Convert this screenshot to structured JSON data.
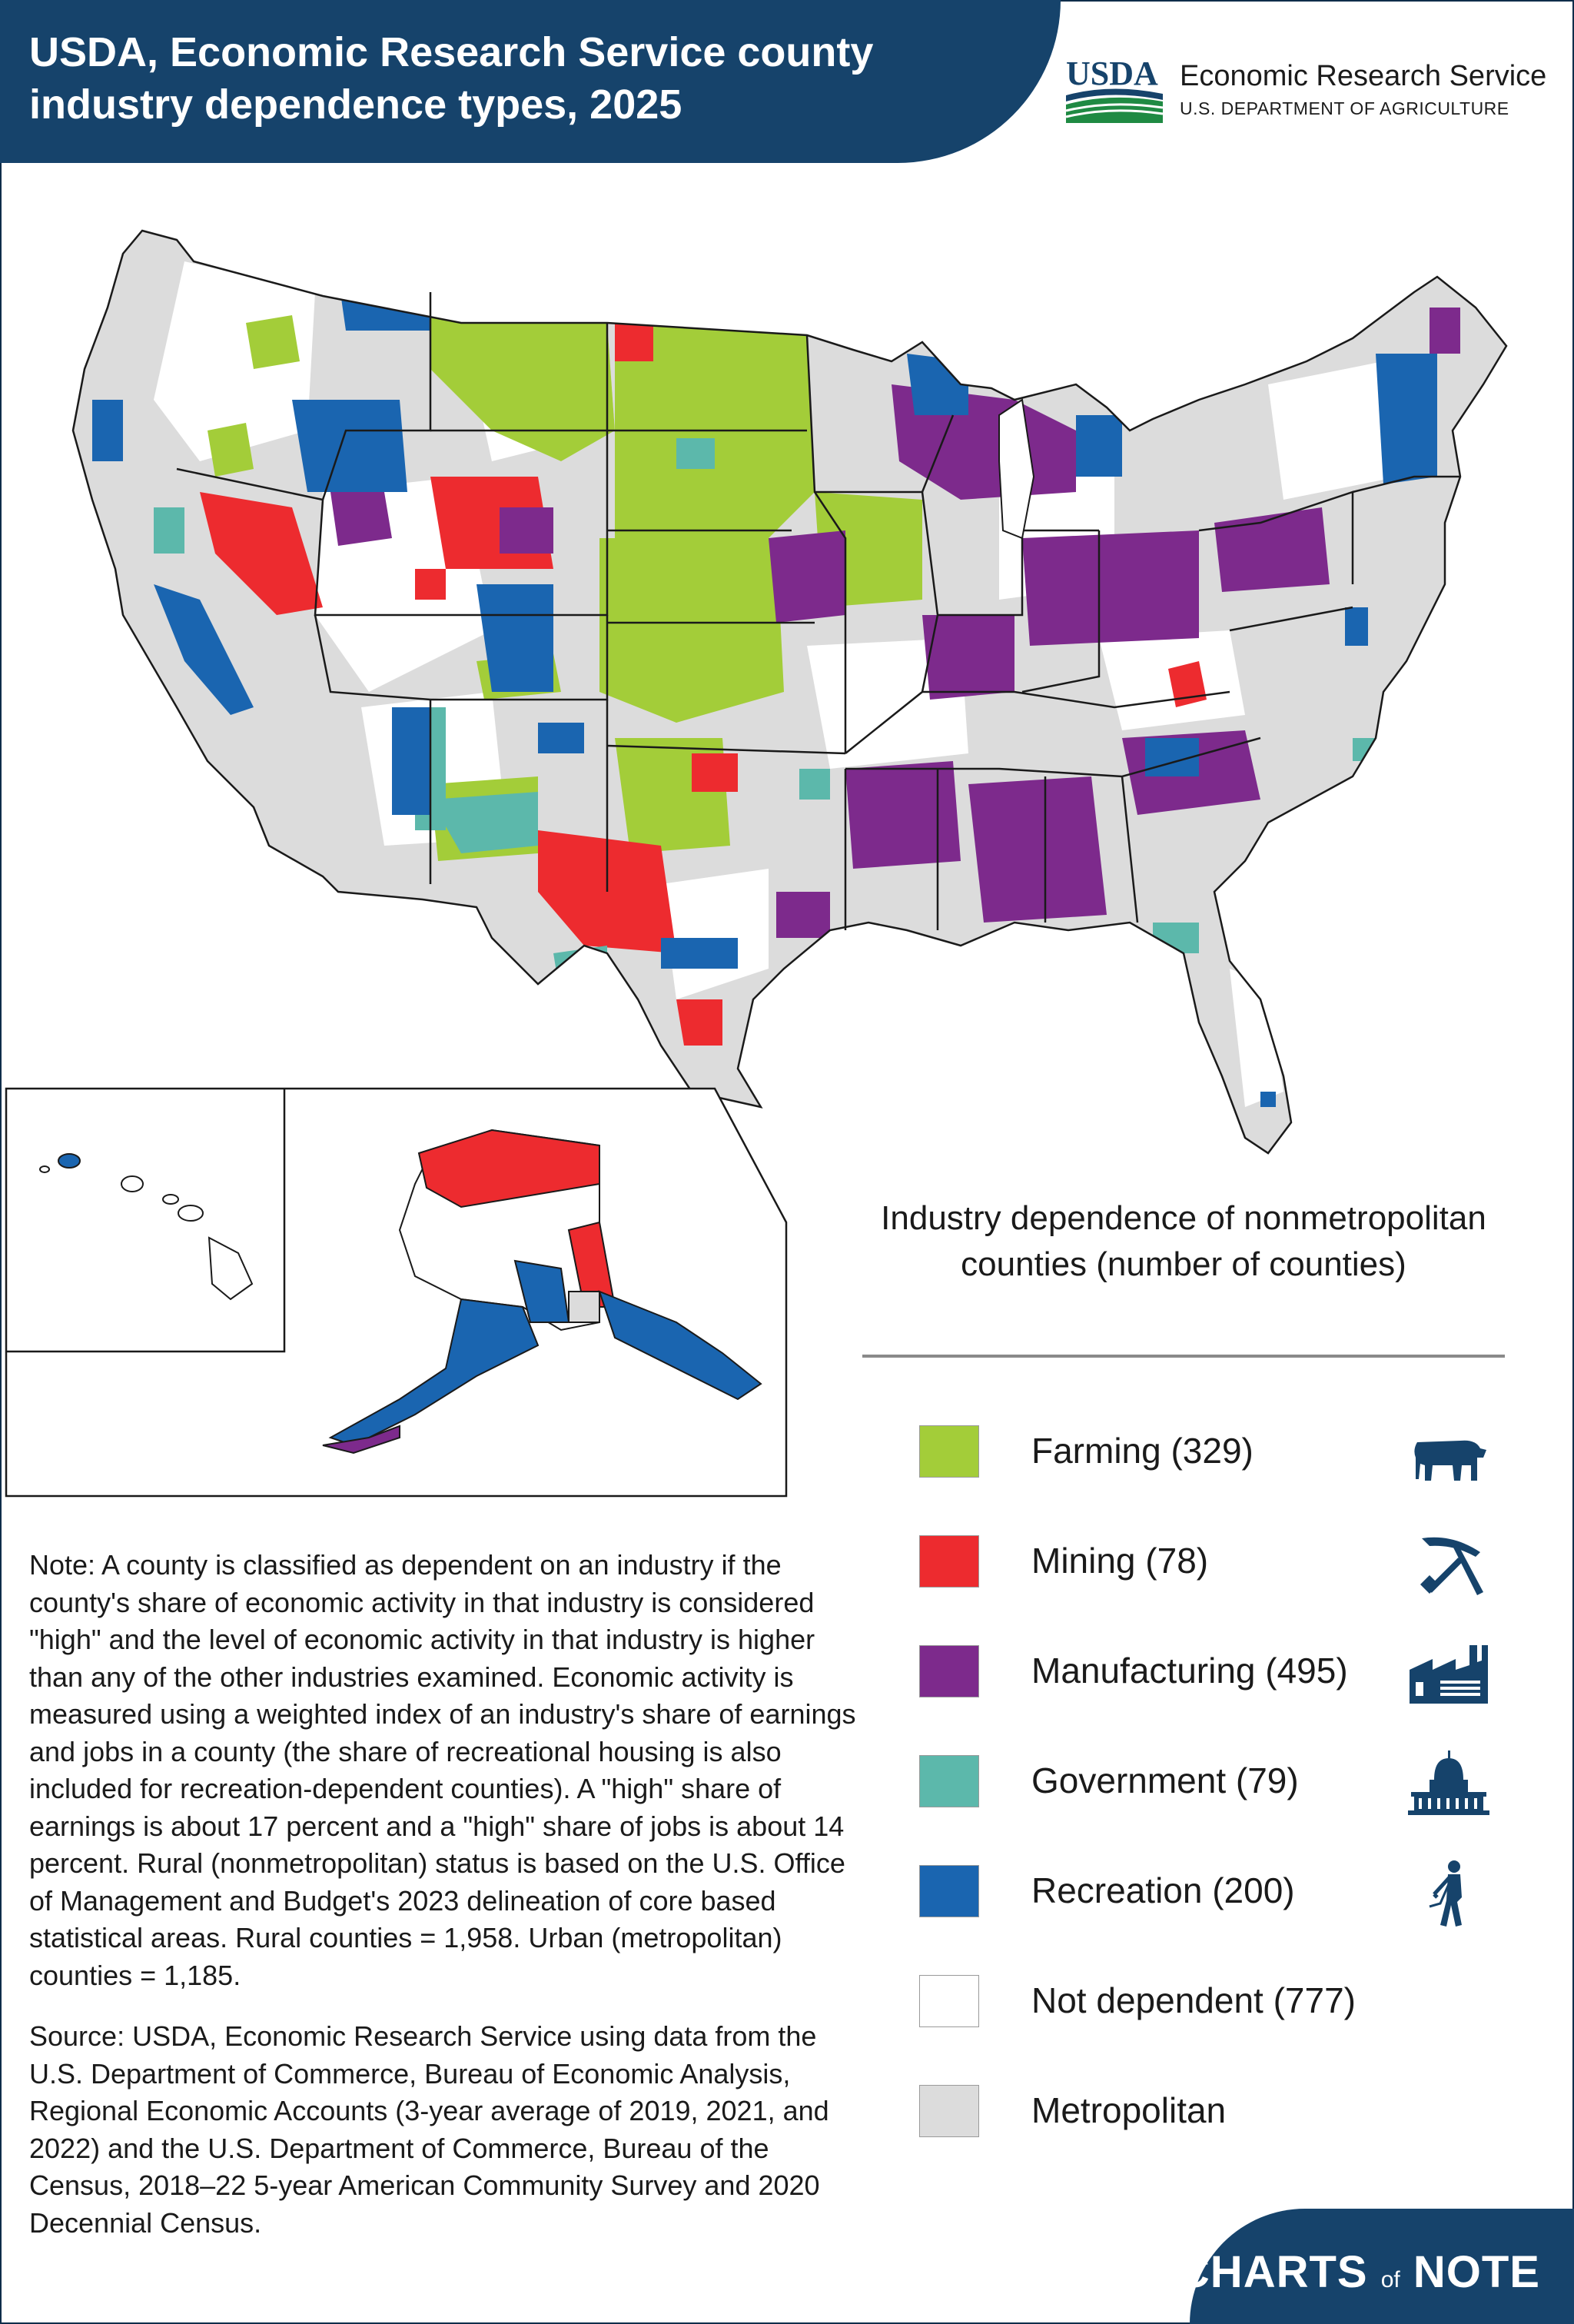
{
  "header": {
    "title": "USDA, Economic Research Service county industry dependence types, 2025",
    "logo_text": "USDA",
    "agency_name": "Economic Research Service",
    "department": "U.S. DEPARTMENT OF AGRICULTURE"
  },
  "map": {
    "type": "choropleth",
    "geography": "U.S. counties (contiguous states, Alaska, Hawaii)",
    "colors": {
      "farming": "#a3cd39",
      "mining": "#ed2b2f",
      "manufacturing": "#7d2a8c",
      "government": "#5cb8ab",
      "recreation": "#1a65b0",
      "not_dependent": "#ffffff",
      "metropolitan": "#dcdcdc",
      "borders": "#1a1a1a"
    }
  },
  "legend": {
    "title": "Industry dependence of nonmetropolitan counties (number of counties)",
    "items": [
      {
        "label": "Farming (329)",
        "color": "#a3cd39",
        "icon": "cow-icon"
      },
      {
        "label": "Mining (78)",
        "color": "#ed2b2f",
        "icon": "shovel-pickaxe-icon"
      },
      {
        "label": "Manufacturing (495)",
        "color": "#7d2a8c",
        "icon": "factory-icon"
      },
      {
        "label": "Government (79)",
        "color": "#5cb8ab",
        "icon": "capitol-icon"
      },
      {
        "label": "Recreation (200)",
        "color": "#1a65b0",
        "icon": "golfer-icon"
      },
      {
        "label": "Not dependent (777)",
        "color": "#ffffff",
        "icon": ""
      },
      {
        "label": "Metropolitan",
        "color": "#dcdcdc",
        "icon": ""
      }
    ]
  },
  "note": "Note: A county is classified as dependent on an industry if the county's share of economic activity in that industry is considered \"high\" and the level of economic activity in that industry is higher than any of the other industries examined. Economic activity is measured using a weighted index of an industry's share of earnings and jobs in a county (the share of recreational housing is also included for recreation-dependent counties). A \"high\" share of earnings is about 17 percent and a \"high\" share of jobs is about 14 percent. Rural (nonmetropolitan) status is based on the U.S. Office of Management and Budget's 2023 delineation of core based statistical areas. Rural counties = 1,958. Urban (metropolitan) counties = 1,185.",
  "source": "Source: USDA, Economic Research Service using data from the U.S. Department of Commerce, Bureau of Economic Analysis, Regional Economic Accounts (3-year average of 2019, 2021, and 2022) and the U.S. Department of Commerce, Bureau of the Census, 2018–22 5-year American Community Survey and 2020 Decennial Census.",
  "footer": {
    "brand_left": "CHARTS",
    "brand_mid": "of",
    "brand_right": "NOTE"
  }
}
